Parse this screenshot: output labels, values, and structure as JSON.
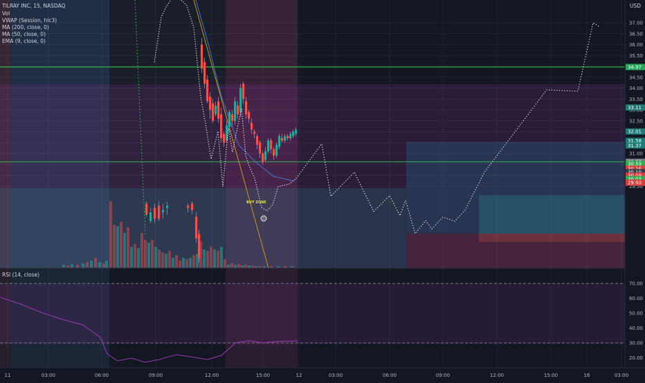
{
  "header": {
    "symbol_line": "TILRAY INC, 15, NASDAQ",
    "currency": "USD",
    "indicators": [
      "Vol",
      "VWAP (Session, hlc3)",
      "MA (200, close, 0)",
      "MA (50, close, 0)",
      "EMA (9, close, 0)"
    ]
  },
  "price_axis": {
    "ticks": [
      "37.00",
      "36.50",
      "36.00",
      "35.50",
      "35.00",
      "34.50",
      "34.00",
      "33.50",
      "33.00",
      "32.50",
      "32.00",
      "31.50",
      "31.00",
      "30.50",
      "30.00",
      "29.50"
    ]
  },
  "price_tags": [
    {
      "label": "34.97",
      "price": 34.97,
      "color": "#26a65b"
    },
    {
      "label": "33.11",
      "price": 33.11,
      "color": "#1e7a74"
    },
    {
      "label": "32.01",
      "price": 32.01,
      "color": "#1e7a74"
    },
    {
      "label": "31.58",
      "price": 31.58,
      "color": "#1e7a74"
    },
    {
      "label": "31.37",
      "price": 31.37,
      "color": "#1e7a74"
    },
    {
      "label": "30.62",
      "price": 30.62,
      "color": "#777b86"
    },
    {
      "label": "30.59",
      "price": 30.52,
      "color": "#2fa84f"
    },
    {
      "label": "30.16",
      "price": 30.3,
      "color": "#d63c3c"
    },
    {
      "label": "30.10",
      "price": 30.14,
      "color": "#363a45"
    },
    {
      "label": "30.09",
      "price": 29.98,
      "color": "#d63c3c"
    },
    {
      "label": "30.03",
      "price": 29.82,
      "color": "#2fa84f"
    },
    {
      "label": "29.90",
      "price": 29.66,
      "color": "#d63c3c"
    }
  ],
  "rsi": {
    "label": "RSI (14, close)",
    "ticks": [
      "70.00",
      "60.00",
      "50.00",
      "40.00",
      "30.00",
      "20.00"
    ],
    "ymin": 15,
    "ymax": 79,
    "upper": 70,
    "lower": 30
  },
  "time_axis": {
    "labels": [
      "11",
      "03:00",
      "06:00",
      "09:00",
      "12:00",
      "15:00",
      "12",
      "03:00",
      "06:00",
      "09:00",
      "12:00",
      "15:00",
      "16",
      "03:00"
    ]
  },
  "annotation": {
    "text": "BUY ZONE"
  },
  "colors": {
    "up": "#26a69a",
    "down": "#ef5350",
    "projection": "#ffffff",
    "green_line": "#2fbe4a",
    "background": "#131722"
  }
}
